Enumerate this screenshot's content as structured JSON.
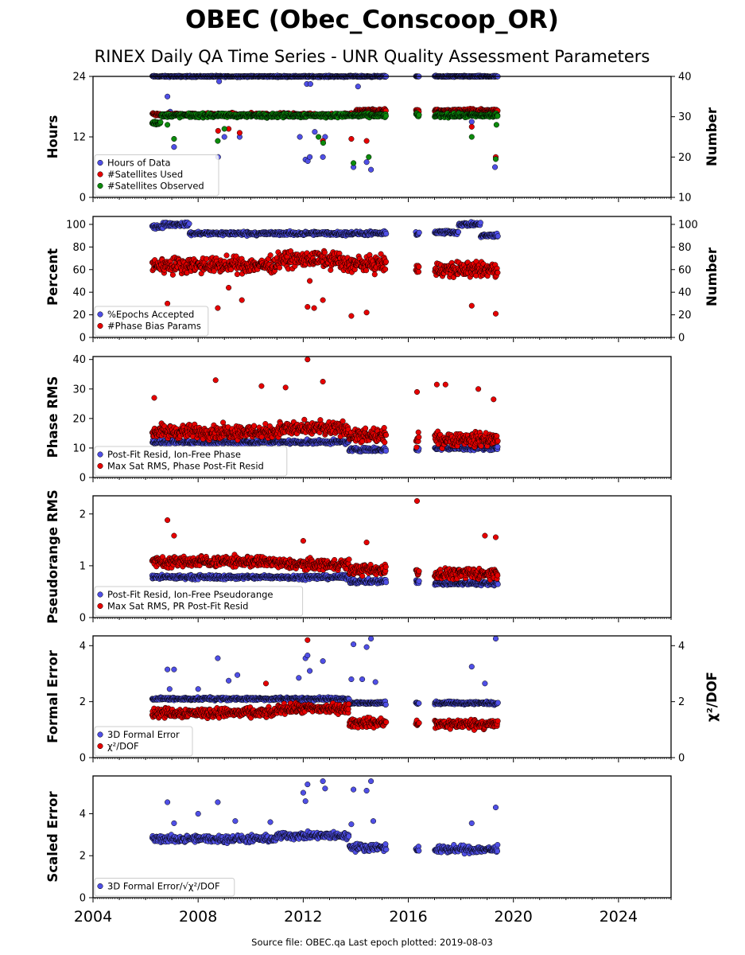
{
  "header": {
    "title": "OBEC (Obec_Conscoop_OR)",
    "subtitle": "RINEX Daily QA Time Series - UNR Quality Assessment Parameters"
  },
  "footer": "Source file: OBEC.qa  Last epoch plotted: 2019-08-03",
  "colors": {
    "blue": "#4f4fe6",
    "red": "#e60000",
    "green": "#0c8a0c",
    "edge": "#000000"
  },
  "chart_data": [
    {
      "type": "scatter",
      "id": "hours",
      "ylabel": "Hours",
      "ylim": [
        0,
        24
      ],
      "yticks": [
        0,
        12,
        24
      ],
      "y2label": "Number",
      "y2lim": [
        10,
        40
      ],
      "y2ticks": [
        10,
        20,
        30,
        40
      ],
      "legend": "lower-left",
      "x_range": [
        "2004-01-01",
        "2026-01-01"
      ],
      "xticks": [
        "2004",
        "2008",
        "2012",
        "2016",
        "2020",
        "2024"
      ],
      "series": [
        {
          "name": "Hours of Data",
          "color": "blue",
          "axis": "left",
          "base": 24,
          "spread": 0.2,
          "dips": [
            [
              "2006-11-01",
              20
            ],
            [
              "2006-12-10",
              17
            ],
            [
              "2007-02-01",
              10
            ],
            [
              "2008-10-05",
              8
            ],
            [
              "2009-01-01",
              12
            ],
            [
              "2009-08-01",
              12
            ],
            [
              "2011-11-15",
              12
            ],
            [
              "2012-02-01",
              7.5
            ],
            [
              "2012-03-05",
              7.2
            ],
            [
              "2012-04-01",
              8
            ],
            [
              "2012-06-10",
              13
            ],
            [
              "2012-10-01",
              8
            ],
            [
              "2012-11-01",
              12
            ],
            [
              "2013-12-01",
              6
            ],
            [
              "2014-06-01",
              7
            ],
            [
              "2014-08-01",
              5.5
            ],
            [
              "2018-06-01",
              15
            ],
            [
              "2019-04-20",
              6
            ],
            [
              "2012-02-20",
              22.5
            ],
            [
              "2012-04-10",
              22.5
            ],
            [
              "2014-02-01",
              22
            ],
            [
              "2008-10-20",
              23
            ]
          ]
        },
        {
          "name": "#Satellites Used",
          "color": "red",
          "axis": "right",
          "segments": [
            [
              "2006-04-01",
              "2013-12-31",
              30.5
            ],
            [
              "2014-01-01",
              "2015-03-01",
              31.5
            ],
            [
              "2016-04-15",
              "2016-06-01",
              31.5
            ],
            [
              "2017-01-01",
              "2019-06-01",
              31.5
            ]
          ],
          "spread": 0.6,
          "dips": [
            [
              "2008-10-05",
              26.5
            ],
            [
              "2009-03-01",
              27
            ],
            [
              "2012-10-01",
              24
            ],
            [
              "2013-11-01",
              24.5
            ],
            [
              "2014-06-01",
              24
            ],
            [
              "2018-06-01",
              27.5
            ],
            [
              "2019-05-01",
              20
            ],
            [
              "2009-08-01",
              26
            ]
          ]
        },
        {
          "name": "#Satellites Observed",
          "color": "green",
          "axis": "right",
          "segments": [
            [
              "2006-04-01",
              "2006-08-01",
              28.5
            ],
            [
              "2006-08-01",
              "2015-03-01",
              30.3
            ],
            [
              "2016-04-15",
              "2016-06-01",
              30.3
            ],
            [
              "2017-01-01",
              "2019-06-01",
              30.3
            ]
          ],
          "spread": 0.7,
          "dips": [
            [
              "2006-11-01",
              28
            ],
            [
              "2007-02-01",
              24.5
            ],
            [
              "2008-10-01",
              24
            ],
            [
              "2009-01-01",
              27
            ],
            [
              "2012-08-01",
              25
            ],
            [
              "2012-10-05",
              23.5
            ],
            [
              "2013-12-01",
              18.5
            ],
            [
              "2014-07-01",
              20
            ],
            [
              "2018-06-01",
              25
            ],
            [
              "2019-05-01",
              19.5
            ],
            [
              "2019-05-10",
              28
            ]
          ]
        }
      ]
    },
    {
      "type": "scatter",
      "id": "percent",
      "ylabel": "Percent",
      "ylim": [
        0,
        107
      ],
      "yticks": [
        0,
        20,
        40,
        60,
        80,
        100
      ],
      "y2label": "Number",
      "y2lim": [
        0,
        107
      ],
      "y2ticks": [
        0,
        20,
        40,
        60,
        80,
        100
      ],
      "legend": "lower-left",
      "x_range": [
        "2004-01-01",
        "2026-01-01"
      ],
      "xticks": [
        "2004",
        "2008",
        "2012",
        "2016",
        "2020",
        "2024"
      ],
      "series": [
        {
          "name": "%Epochs Accepted",
          "color": "blue",
          "axis": "left",
          "segments": [
            [
              "2006-04-01",
              "2006-09-01",
              98
            ],
            [
              "2006-09-01",
              "2007-09-01",
              100
            ],
            [
              "2007-09-01",
              "2015-03-01",
              92
            ],
            [
              "2016-04-15",
              "2016-06-01",
              92
            ],
            [
              "2017-01-01",
              "2017-12-01",
              93
            ],
            [
              "2017-12-01",
              "2018-10-01",
              100
            ],
            [
              "2018-10-01",
              "2019-06-01",
              90
            ]
          ],
          "spread": 2.5
        },
        {
          "name": "#Phase Bias Params",
          "color": "red",
          "axis": "left",
          "segments": [
            [
              "2006-04-01",
              "2011-01-01",
              64
            ],
            [
              "2011-01-01",
              "2013-06-01",
              69
            ],
            [
              "2013-06-01",
              "2015-03-01",
              65
            ],
            [
              "2016-04-15",
              "2016-06-01",
              60
            ],
            [
              "2017-01-01",
              "2019-06-01",
              60
            ]
          ],
          "spread": 10,
          "dips": [
            [
              "2006-11-01",
              30
            ],
            [
              "2008-10-01",
              26
            ],
            [
              "2009-03-01",
              44
            ],
            [
              "2009-09-01",
              33
            ],
            [
              "2012-03-01",
              27
            ],
            [
              "2012-06-01",
              26
            ],
            [
              "2012-04-01",
              50
            ],
            [
              "2012-10-01",
              33
            ],
            [
              "2013-11-01",
              19
            ],
            [
              "2014-06-01",
              22
            ],
            [
              "2018-06-01",
              28
            ],
            [
              "2019-05-01",
              21
            ]
          ]
        }
      ]
    },
    {
      "type": "scatter",
      "id": "phase-rms",
      "ylabel": "Phase RMS",
      "ylim": [
        0,
        41
      ],
      "yticks": [
        0,
        10,
        20,
        30,
        40
      ],
      "legend": "lower-left",
      "x_range": [
        "2004-01-01",
        "2026-01-01"
      ],
      "xticks": [
        "2004",
        "2008",
        "2012",
        "2016",
        "2020",
        "2024"
      ],
      "series": [
        {
          "name": "Post-Fit Resid, Ion-Free Phase",
          "color": "blue",
          "axis": "left",
          "segments": [
            [
              "2006-04-01",
              "2013-10-01",
              12
            ],
            [
              "2013-10-01",
              "2015-03-01",
              9.5
            ],
            [
              "2016-04-15",
              "2016-06-01",
              9.5
            ],
            [
              "2017-01-01",
              "2019-06-01",
              10
            ]
          ],
          "spread": 1
        },
        {
          "name": "Max Sat RMS, Phase Post-Fit Resid",
          "color": "red",
          "axis": "left",
          "segments": [
            [
              "2006-04-01",
              "2011-01-01",
              15.5
            ],
            [
              "2011-01-01",
              "2013-10-01",
              16.5
            ],
            [
              "2013-10-01",
              "2015-03-01",
              14
            ],
            [
              "2016-04-15",
              "2016-06-01",
              13
            ],
            [
              "2017-01-01",
              "2019-06-01",
              13
            ]
          ],
          "spread": 3.5,
          "dips": [
            [
              "2006-05-01",
              27
            ],
            [
              "2008-09-01",
              33
            ],
            [
              "2012-03-01",
              40
            ],
            [
              "2010-06-01",
              31
            ],
            [
              "2012-10-01",
              32.5
            ],
            [
              "2011-05-01",
              30.5
            ],
            [
              "2016-05-01",
              29
            ],
            [
              "2017-02-01",
              31.5
            ],
            [
              "2017-06-01",
              31.5
            ],
            [
              "2018-09-01",
              30
            ],
            [
              "2019-04-01",
              26.5
            ]
          ]
        }
      ]
    },
    {
      "type": "scatter",
      "id": "pseudorange-rms",
      "ylabel": "Pseudorange RMS",
      "ylim": [
        0,
        2.35
      ],
      "yticks": [
        0,
        1,
        2
      ],
      "legend": "lower-left",
      "x_range": [
        "2004-01-01",
        "2026-01-01"
      ],
      "xticks": [
        "2004",
        "2008",
        "2012",
        "2016",
        "2020",
        "2024"
      ],
      "series": [
        {
          "name": "Post-Fit Resid, Ion-Free Pseudorange",
          "color": "blue",
          "axis": "left",
          "segments": [
            [
              "2006-04-01",
              "2013-10-01",
              0.78
            ],
            [
              "2013-10-01",
              "2015-03-01",
              0.7
            ],
            [
              "2016-04-15",
              "2016-06-01",
              0.7
            ],
            [
              "2017-01-01",
              "2019-06-01",
              0.66
            ]
          ],
          "spread": 0.06
        },
        {
          "name": "Max Sat RMS, PR Post-Fit Resid",
          "color": "red",
          "axis": "left",
          "segments": [
            [
              "2006-04-01",
              "2011-01-01",
              1.08
            ],
            [
              "2011-01-01",
              "2013-10-01",
              1.03
            ],
            [
              "2013-10-01",
              "2015-03-01",
              0.92
            ],
            [
              "2016-04-15",
              "2016-06-01",
              0.88
            ],
            [
              "2017-01-01",
              "2019-06-01",
              0.85
            ]
          ],
          "spread": 0.15,
          "dips": [
            [
              "2006-11-01",
              1.88
            ],
            [
              "2007-02-01",
              1.58
            ],
            [
              "2012-01-01",
              1.48
            ],
            [
              "2014-06-01",
              1.45
            ],
            [
              "2016-05-01",
              2.25
            ],
            [
              "2018-12-01",
              1.58
            ],
            [
              "2019-05-01",
              1.55
            ]
          ]
        }
      ]
    },
    {
      "type": "scatter",
      "id": "formal-error",
      "ylabel": "Formal Error",
      "ylim": [
        0,
        4.35
      ],
      "yticks": [
        0,
        2,
        4
      ],
      "y2ticks": [
        0,
        2,
        4
      ],
      "legend": "lower-left",
      "x_range": [
        "2004-01-01",
        "2026-01-01"
      ],
      "xticks": [
        "2004",
        "2008",
        "2012",
        "2016",
        "2020",
        "2024"
      ],
      "series": [
        {
          "name": "3D Formal Error",
          "color": "blue",
          "axis": "left",
          "segments": [
            [
              "2006-04-01",
              "2013-10-01",
              2.1
            ],
            [
              "2013-10-01",
              "2015-03-01",
              1.95
            ],
            [
              "2016-04-15",
              "2016-06-01",
              1.95
            ],
            [
              "2017-01-01",
              "2019-06-01",
              1.95
            ]
          ],
          "spread": 0.08,
          "dips": [
            [
              "2006-11-01",
              3.15
            ],
            [
              "2007-02-01",
              3.15
            ],
            [
              "2006-12-01",
              2.45
            ],
            [
              "2008-01-01",
              2.45
            ],
            [
              "2008-10-01",
              3.55
            ],
            [
              "2009-03-01",
              2.75
            ],
            [
              "2009-07-01",
              2.95
            ],
            [
              "2011-11-01",
              2.85
            ],
            [
              "2012-02-01",
              3.55
            ],
            [
              "2012-03-01",
              3.65
            ],
            [
              "2012-04-01",
              3.1
            ],
            [
              "2012-10-01",
              3.45
            ],
            [
              "2013-12-01",
              4.05
            ],
            [
              "2013-11-01",
              2.8
            ],
            [
              "2014-04-01",
              2.8
            ],
            [
              "2014-06-01",
              3.95
            ],
            [
              "2014-08-01",
              4.25
            ],
            [
              "2014-10-01",
              2.7
            ],
            [
              "2018-06-01",
              3.25
            ],
            [
              "2018-12-01",
              2.65
            ],
            [
              "2019-05-01",
              4.25
            ]
          ]
        },
        {
          "name": "χ²/DOF",
          "color": "red",
          "axis": "left",
          "segments": [
            [
              "2006-04-01",
              "2011-01-01",
              1.6
            ],
            [
              "2011-01-01",
              "2013-10-01",
              1.75
            ],
            [
              "2013-10-01",
              "2015-03-01",
              1.25
            ],
            [
              "2016-04-15",
              "2016-06-01",
              1.2
            ],
            [
              "2017-01-01",
              "2019-06-01",
              1.2
            ]
          ],
          "spread": 0.25,
          "dips": [
            [
              "2010-08-01",
              2.65
            ],
            [
              "2012-03-01",
              4.2
            ]
          ]
        }
      ]
    },
    {
      "type": "scatter",
      "id": "scaled-error",
      "ylabel": "Scaled Error",
      "ylim": [
        0,
        5.8
      ],
      "yticks": [
        0,
        2,
        4
      ],
      "legend": "lower-left",
      "x_range": [
        "2004-01-01",
        "2026-01-01"
      ],
      "xticks": [
        "2004",
        "2008",
        "2012",
        "2016",
        "2020",
        "2024"
      ],
      "series": [
        {
          "name": "3D Formal Error/√χ²/DOF",
          "color": "blue",
          "axis": "left",
          "segments": [
            [
              "2006-04-01",
              "2011-01-01",
              2.8
            ],
            [
              "2011-01-01",
              "2013-10-01",
              2.95
            ],
            [
              "2013-10-01",
              "2015-03-01",
              2.4
            ],
            [
              "2016-04-15",
              "2016-06-01",
              2.3
            ],
            [
              "2017-01-01",
              "2019-06-01",
              2.3
            ]
          ],
          "spread": 0.25,
          "dips": [
            [
              "2006-11-01",
              4.55
            ],
            [
              "2007-02-01",
              3.55
            ],
            [
              "2008-01-01",
              4.0
            ],
            [
              "2008-10-01",
              4.55
            ],
            [
              "2009-06-01",
              3.65
            ],
            [
              "2010-10-01",
              3.6
            ],
            [
              "2012-01-01",
              5.0
            ],
            [
              "2012-02-01",
              4.6
            ],
            [
              "2012-03-01",
              5.4
            ],
            [
              "2012-10-01",
              5.55
            ],
            [
              "2012-11-01",
              5.2
            ],
            [
              "2013-11-01",
              3.5
            ],
            [
              "2013-12-01",
              5.15
            ],
            [
              "2014-06-01",
              5.1
            ],
            [
              "2014-08-01",
              5.55
            ],
            [
              "2014-09-01",
              3.65
            ],
            [
              "2018-06-01",
              3.55
            ],
            [
              "2019-05-01",
              4.3
            ]
          ]
        }
      ]
    }
  ]
}
